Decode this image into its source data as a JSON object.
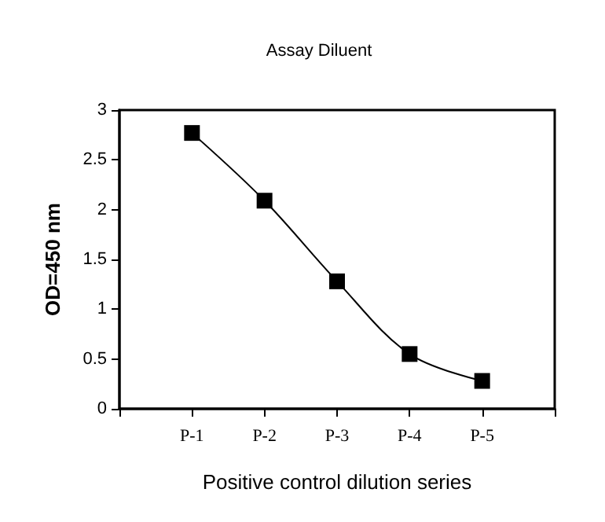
{
  "chart_data": {
    "type": "line",
    "title": "Assay Diluent",
    "xlabel": "Positive control dilution series",
    "ylabel": "OD=450 nm",
    "categories": [
      "P-1",
      "P-2",
      "P-3",
      "P-4",
      "P-5"
    ],
    "series": [
      {
        "color": "#000000",
        "values": [
          2.77,
          2.09,
          1.28,
          0.55,
          0.28
        ]
      }
    ],
    "ylim": [
      0,
      3
    ],
    "yticks": [
      0,
      0.5,
      1,
      1.5,
      2,
      2.5,
      3
    ],
    "grid": false,
    "marker": "square",
    "line_style": "solid"
  }
}
